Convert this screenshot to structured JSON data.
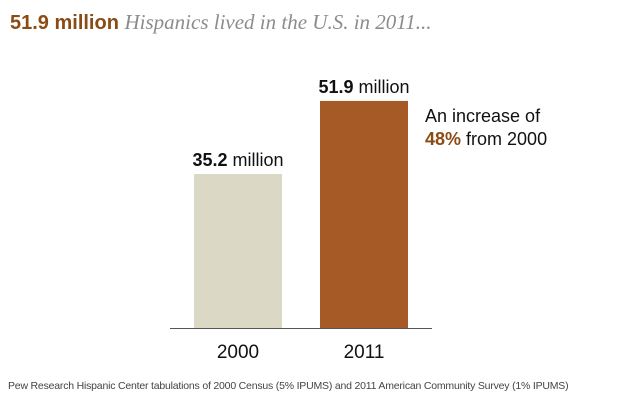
{
  "headline": {
    "bold": "51.9 million",
    "rest": "Hispanics lived in the U.S. in 2011..."
  },
  "chart_data": {
    "type": "bar",
    "categories": [
      "2000",
      "2011"
    ],
    "values": [
      35.2,
      51.9
    ],
    "value_labels": [
      {
        "bold": "35.2",
        "suffix": " million"
      },
      {
        "bold": "51.9",
        "suffix": " million"
      }
    ],
    "bar_colors": [
      "#dcd8c6",
      "#a65a26"
    ],
    "ylim": [
      0,
      55
    ],
    "title": "",
    "xlabel": "",
    "ylabel": "",
    "annotation": {
      "line1": "An increase of",
      "pct": "48%",
      "line2_suffix": " from 2000",
      "accent_color": "#8a4b14"
    }
  },
  "source": "Pew Research Hispanic Center tabulations of 2000 Census (5% IPUMS) and 2011 American Community Survey (1% IPUMS)"
}
